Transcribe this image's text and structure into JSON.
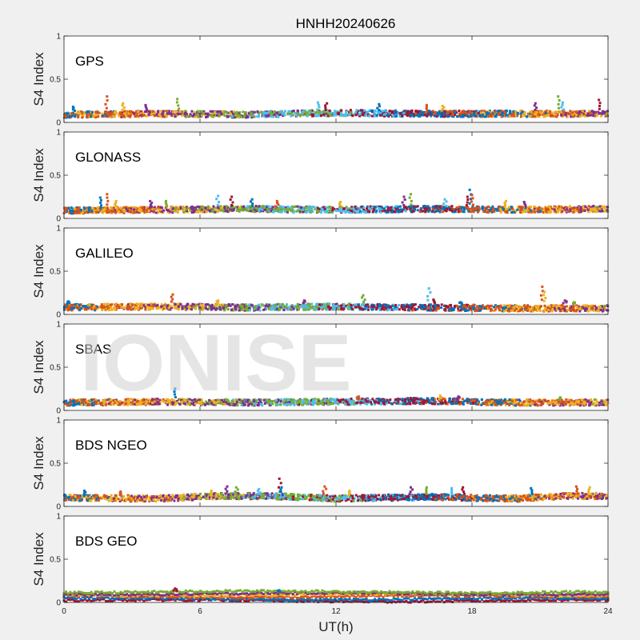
{
  "figure_title": "HNHH20240626",
  "xlabel": "UT(h)",
  "watermark": "IONISE",
  "colors": [
    "#0072BD",
    "#D95319",
    "#EDB120",
    "#7E2F8E",
    "#77AC30",
    "#4DBEEE",
    "#A2142F"
  ],
  "chart_data": [
    {
      "type": "scatter",
      "panel_label": "GPS",
      "ylabel": "S4 Index",
      "xlim": [
        0,
        24
      ],
      "ylim": [
        0,
        1
      ],
      "xticks": [
        0,
        6,
        12,
        18,
        24
      ],
      "yticks": [
        0,
        0.5,
        1
      ],
      "ytick_labels": [
        "0",
        "0.5",
        "1"
      ],
      "series_colors": [
        "#0072BD",
        "#D95319",
        "#EDB120",
        "#7E2F8E",
        "#77AC30",
        "#4DBEEE",
        "#A2142F"
      ],
      "baseline": [
        [
          0,
          0.09
        ],
        [
          4,
          0.1
        ],
        [
          8,
          0.09
        ],
        [
          12,
          0.11
        ],
        [
          16,
          0.1
        ],
        [
          20,
          0.1
        ],
        [
          24,
          0.1
        ]
      ],
      "spikes": [
        [
          0.4,
          0.18
        ],
        [
          1.9,
          0.3
        ],
        [
          2.6,
          0.22
        ],
        [
          3.6,
          0.2
        ],
        [
          5.0,
          0.27
        ],
        [
          11.2,
          0.23
        ],
        [
          11.6,
          0.22
        ],
        [
          13.9,
          0.21
        ],
        [
          16.0,
          0.2
        ],
        [
          16.7,
          0.19
        ],
        [
          20.8,
          0.22
        ],
        [
          21.8,
          0.3
        ],
        [
          22.0,
          0.23
        ],
        [
          23.6,
          0.26
        ]
      ]
    },
    {
      "type": "scatter",
      "panel_label": "GLONASS",
      "ylabel": "S4 Index",
      "xlim": [
        0,
        24
      ],
      "ylim": [
        0,
        1
      ],
      "xticks": [
        0,
        6,
        12,
        18,
        24
      ],
      "yticks": [
        0,
        0.5,
        1
      ],
      "ytick_labels": [
        "0",
        "0.5",
        "1"
      ],
      "series_colors": [
        "#0072BD",
        "#D95319",
        "#EDB120",
        "#7E2F8E",
        "#77AC30",
        "#4DBEEE",
        "#A2142F"
      ],
      "baseline": [
        [
          0,
          0.09
        ],
        [
          4,
          0.1
        ],
        [
          8,
          0.11
        ],
        [
          12,
          0.1
        ],
        [
          16,
          0.11
        ],
        [
          20,
          0.1
        ],
        [
          24,
          0.11
        ]
      ],
      "spikes": [
        [
          1.6,
          0.24
        ],
        [
          1.9,
          0.28
        ],
        [
          2.3,
          0.2
        ],
        [
          3.8,
          0.2
        ],
        [
          4.5,
          0.2
        ],
        [
          6.8,
          0.26
        ],
        [
          7.4,
          0.25
        ],
        [
          8.3,
          0.22
        ],
        [
          9.4,
          0.2
        ],
        [
          12.2,
          0.19
        ],
        [
          15.0,
          0.25
        ],
        [
          15.3,
          0.28
        ],
        [
          16.8,
          0.22
        ],
        [
          17.8,
          0.25
        ],
        [
          17.9,
          0.33
        ],
        [
          18.0,
          0.27
        ],
        [
          19.5,
          0.2
        ],
        [
          20.3,
          0.19
        ]
      ]
    },
    {
      "type": "scatter",
      "panel_label": "GALILEO",
      "ylabel": "S4 Index",
      "xlim": [
        0,
        24
      ],
      "ylim": [
        0,
        1
      ],
      "xticks": [
        0,
        6,
        12,
        18,
        24
      ],
      "yticks": [
        0,
        0.5,
        1
      ],
      "ytick_labels": [
        "0",
        "0.5",
        "1"
      ],
      "series_colors": [
        "#0072BD",
        "#D95319",
        "#EDB120",
        "#7E2F8E",
        "#77AC30",
        "#4DBEEE",
        "#A2142F"
      ],
      "baseline": [
        [
          0,
          0.08
        ],
        [
          4,
          0.09
        ],
        [
          8,
          0.08
        ],
        [
          12,
          0.09
        ],
        [
          16,
          0.08
        ],
        [
          20,
          0.07
        ],
        [
          24,
          0.07
        ]
      ],
      "spikes": [
        [
          0.2,
          0.15
        ],
        [
          4.8,
          0.23
        ],
        [
          6.8,
          0.16
        ],
        [
          10.6,
          0.16
        ],
        [
          13.2,
          0.22
        ],
        [
          16.1,
          0.3
        ],
        [
          16.3,
          0.17
        ],
        [
          17.5,
          0.14
        ],
        [
          21.1,
          0.32
        ],
        [
          21.2,
          0.26
        ],
        [
          22.1,
          0.16
        ],
        [
          22.5,
          0.14
        ]
      ]
    },
    {
      "type": "scatter",
      "panel_label": "SBAS",
      "ylabel": "S4 Index",
      "xlim": [
        0,
        24
      ],
      "ylim": [
        0,
        1
      ],
      "xticks": [
        0,
        6,
        12,
        18,
        24
      ],
      "yticks": [
        0,
        0.5,
        1
      ],
      "ytick_labels": [
        "0",
        "0.5",
        "1"
      ],
      "series_colors": [
        "#0072BD",
        "#D95319",
        "#EDB120",
        "#7E2F8E",
        "#77AC30",
        "#4DBEEE",
        "#A2142F"
      ],
      "baseline": [
        [
          0,
          0.09
        ],
        [
          4,
          0.1
        ],
        [
          8,
          0.09
        ],
        [
          12,
          0.1
        ],
        [
          16,
          0.11
        ],
        [
          20,
          0.09
        ],
        [
          24,
          0.09
        ]
      ],
      "spikes": [
        [
          4.9,
          0.25
        ],
        [
          13.0,
          0.16
        ],
        [
          16.6,
          0.17
        ],
        [
          17.4,
          0.16
        ],
        [
          21.9,
          0.15
        ]
      ]
    },
    {
      "type": "scatter",
      "panel_label": "BDS NGEO",
      "ylabel": "S4 Index",
      "xlim": [
        0,
        24
      ],
      "ylim": [
        0,
        1
      ],
      "xticks": [
        0,
        6,
        12,
        18,
        24
      ],
      "yticks": [
        0,
        0.5,
        1
      ],
      "ytick_labels": [
        "0",
        "0.5",
        "1"
      ],
      "series_colors": [
        "#0072BD",
        "#D95319",
        "#EDB120",
        "#7E2F8E",
        "#77AC30",
        "#4DBEEE",
        "#A2142F"
      ],
      "baseline": [
        [
          0,
          0.1
        ],
        [
          4,
          0.09
        ],
        [
          7,
          0.12
        ],
        [
          9,
          0.12
        ],
        [
          12,
          0.09
        ],
        [
          16,
          0.11
        ],
        [
          20,
          0.09
        ],
        [
          22,
          0.12
        ],
        [
          24,
          0.12
        ]
      ],
      "spikes": [
        [
          0.9,
          0.18
        ],
        [
          2.5,
          0.17
        ],
        [
          6.5,
          0.18
        ],
        [
          7.2,
          0.23
        ],
        [
          7.6,
          0.22
        ],
        [
          8.6,
          0.2
        ],
        [
          9.5,
          0.32
        ],
        [
          9.6,
          0.22
        ],
        [
          11.5,
          0.23
        ],
        [
          12.6,
          0.18
        ],
        [
          15.3,
          0.22
        ],
        [
          16.0,
          0.22
        ],
        [
          17.1,
          0.21
        ],
        [
          17.6,
          0.22
        ],
        [
          20.6,
          0.21
        ],
        [
          22.6,
          0.23
        ],
        [
          23.2,
          0.22
        ]
      ]
    },
    {
      "type": "scatter",
      "panel_label": "BDS GEO",
      "ylabel": "S4 Index",
      "xlim": [
        0,
        24
      ],
      "ylim": [
        0,
        1
      ],
      "xticks": [
        0,
        6,
        12,
        18,
        24
      ],
      "yticks": [
        0,
        0.5,
        1
      ],
      "ytick_labels": [
        "0",
        "0.5",
        "1"
      ],
      "series_colors": [
        "#A2142F",
        "#0072BD",
        "#D95319",
        "#EDB120",
        "#7E2F8E",
        "#77AC30"
      ],
      "series_levels": [
        0.02,
        0.04,
        0.07,
        0.09,
        0.1,
        0.12
      ],
      "spikes": [
        [
          4.9,
          0.16
        ],
        [
          9.5,
          0.14
        ]
      ]
    }
  ],
  "xtick_labels": [
    "0",
    "6",
    "12",
    "18",
    "24"
  ]
}
